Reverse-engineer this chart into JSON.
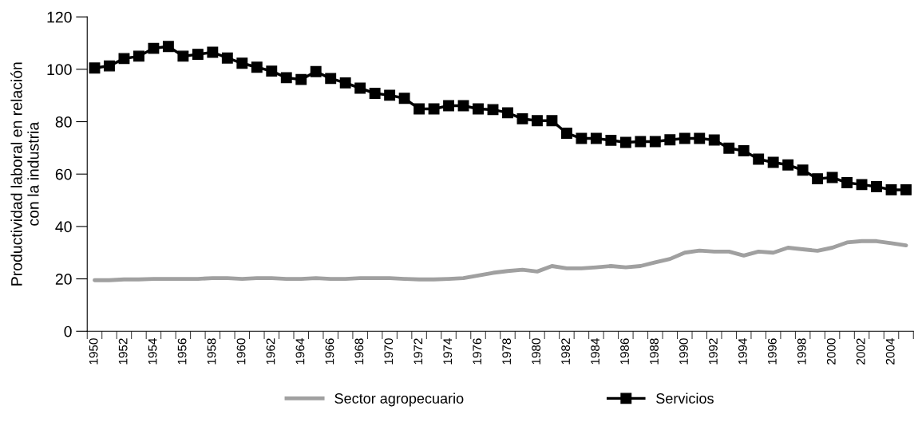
{
  "chart_data": {
    "type": "line",
    "ylabel": "Productividad laboral en relación\ncon la industria",
    "categories": [
      "1950",
      null,
      "1952",
      null,
      "1954",
      null,
      "1956",
      null,
      "1958",
      null,
      "1960",
      null,
      "1962",
      null,
      "1964",
      null,
      "1966",
      null,
      "1968",
      null,
      "1970",
      null,
      "1972",
      null,
      "1974",
      null,
      "1976",
      null,
      "1978",
      null,
      "1980",
      null,
      "1982",
      null,
      "1984",
      null,
      "1986",
      null,
      "1988",
      null,
      "1990",
      null,
      "1992",
      null,
      "1994",
      null,
      "1996",
      null,
      "1998",
      null,
      "2000",
      null,
      "2002",
      null,
      "2004",
      null
    ],
    "series": [
      {
        "name": "Sector agropecuario",
        "color": "#a0a0a0",
        "marker": "none",
        "values": [
          19.5,
          19.5,
          19.8,
          19.8,
          20,
          20,
          20,
          20,
          20.3,
          20.3,
          20,
          20.3,
          20.3,
          20,
          20,
          20.3,
          20,
          20,
          20.3,
          20.3,
          20.3,
          20,
          19.8,
          19.8,
          20,
          20.3,
          21.3,
          22.3,
          23.0,
          23.5,
          22.8,
          24.9,
          24.0,
          24.0,
          24.4,
          24.9,
          24.4,
          24.9,
          26.3,
          27.6,
          30.0,
          30.8,
          30.4,
          30.4,
          28.9,
          30.4,
          30.0,
          31.9,
          31.3,
          30.7,
          31.9,
          33.9,
          34.4,
          34.4,
          33.6,
          32.8
        ]
      },
      {
        "name": "Servicios",
        "color": "#000000",
        "marker": "square",
        "values": [
          100.5,
          101.3,
          104.1,
          105,
          108,
          108.7,
          105,
          105.7,
          106.5,
          104.3,
          102.3,
          100.8,
          99.3,
          96.8,
          96.1,
          99.1,
          96.5,
          94.8,
          92.8,
          90.8,
          90.1,
          88.9,
          84.9,
          84.9,
          86.1,
          86.1,
          84.9,
          84.6,
          83.4,
          81.1,
          80.4,
          80.4,
          75.6,
          73.6,
          73.6,
          72.9,
          72.1,
          72.4,
          72.4,
          73.1,
          73.6,
          73.6,
          73,
          69.9,
          68.9,
          65.7,
          64.5,
          63.5,
          61.5,
          58.2,
          58.7,
          56.7,
          56.0,
          55.2,
          54.0,
          54.0
        ]
      }
    ],
    "ylim": [
      0,
      120
    ],
    "yticks": [
      0,
      20,
      40,
      60,
      80,
      100,
      120
    ],
    "legend": "bottom",
    "grid": false
  }
}
